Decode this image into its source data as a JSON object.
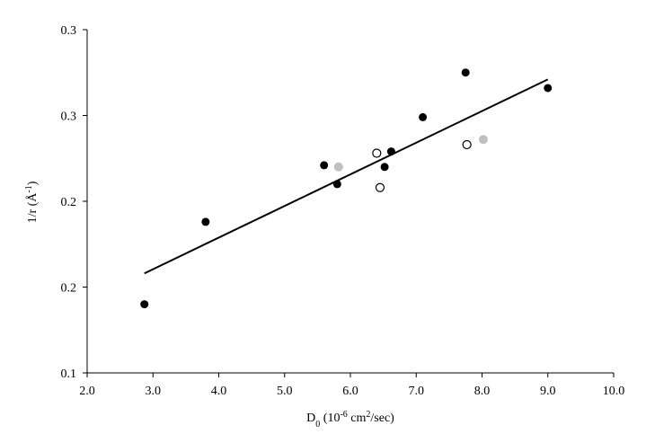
{
  "chart_data": {
    "type": "scatter",
    "title": "",
    "xlabel": {
      "base": "D",
      "sub": "0",
      "rest": " (10",
      "sup": "-6",
      "unit": " cm",
      "unit_sup": "2",
      "tail": "/sec)"
    },
    "ylabel": {
      "base": "1/r (Å",
      "sup": "-1",
      "tail": ")"
    },
    "xlim": [
      2.0,
      10.0
    ],
    "ylim": [
      0.1,
      0.3
    ],
    "x_ticks": [
      2.0,
      3.0,
      4.0,
      5.0,
      6.0,
      7.0,
      8.0,
      9.0,
      10.0
    ],
    "x_tick_labels": [
      "2.0",
      "3.0",
      "4.0",
      "5.0",
      "6.0",
      "7.0",
      "8.0",
      "9.0",
      "10.0"
    ],
    "y_ticks": [
      0.1,
      0.15,
      0.2,
      0.25,
      0.3
    ],
    "y_tick_labels": [
      "0.1",
      "0.2",
      "0.2",
      "0.3",
      "0.3"
    ],
    "grid": false,
    "legend": "none",
    "series": [
      {
        "style": "filled-black",
        "color": "#000000",
        "points": [
          {
            "x": 2.87,
            "y": 0.14
          },
          {
            "x": 3.8,
            "y": 0.188
          },
          {
            "x": 5.6,
            "y": 0.221
          },
          {
            "x": 5.8,
            "y": 0.21
          },
          {
            "x": 6.52,
            "y": 0.22
          },
          {
            "x": 6.62,
            "y": 0.229
          },
          {
            "x": 7.1,
            "y": 0.249
          },
          {
            "x": 7.75,
            "y": 0.275
          },
          {
            "x": 9.0,
            "y": 0.266
          }
        ]
      },
      {
        "style": "filled-gray",
        "color": "#bfbfbf",
        "points": [
          {
            "x": 5.82,
            "y": 0.22
          },
          {
            "x": 8.02,
            "y": 0.236
          }
        ]
      },
      {
        "style": "open",
        "color": "#000000",
        "points": [
          {
            "x": 6.4,
            "y": 0.228
          },
          {
            "x": 6.45,
            "y": 0.208
          },
          {
            "x": 7.77,
            "y": 0.233
          }
        ]
      }
    ],
    "trendline": {
      "x": [
        2.87,
        9.0
      ],
      "y": [
        0.158,
        0.271
      ],
      "color": "#000000"
    }
  }
}
